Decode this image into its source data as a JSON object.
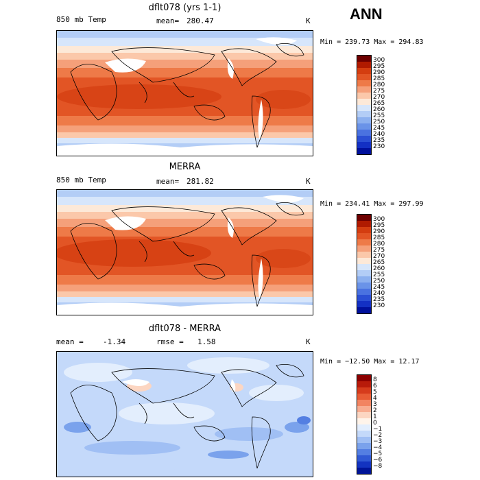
{
  "season": "ANN",
  "units": "K",
  "panels": [
    {
      "title": "dflt078 (yrs 1-1)",
      "field": "850 mb Temp",
      "stat1_label": "mean=",
      "stat1_value": "280.47",
      "minmax": "Min = 239.73 Max = 294.83",
      "palette": "temp",
      "colorbar_ticks": [
        "300",
        "295",
        "290",
        "285",
        "280",
        "275",
        "270",
        "265",
        "260",
        "255",
        "250",
        "245",
        "240",
        "235",
        "230"
      ]
    },
    {
      "title": "MERRA",
      "field": "850 mb Temp",
      "stat1_label": "mean=",
      "stat1_value": "281.82",
      "minmax": "Min = 234.41 Max = 297.99",
      "palette": "temp",
      "colorbar_ticks": [
        "300",
        "295",
        "290",
        "285",
        "280",
        "275",
        "270",
        "265",
        "260",
        "255",
        "250",
        "245",
        "240",
        "235",
        "230"
      ]
    },
    {
      "title": "dflt078 - MERRA",
      "stat1_label": "mean =",
      "stat1_value": "-1.34",
      "stat2_label": "rmse =",
      "stat2_value": "1.58",
      "minmax": "Min = −12.50 Max =  12.17",
      "palette": "diff",
      "colorbar_ticks": [
        "8",
        "6",
        "5",
        "4",
        "3",
        "2",
        "1",
        "0",
        "−1",
        "−2",
        "−3",
        "−4",
        "−5",
        "−6",
        "−8"
      ]
    }
  ],
  "colors": {
    "temp": [
      "#6e0000",
      "#b01a00",
      "#d43d10",
      "#e25525",
      "#ee7a48",
      "#f5a07a",
      "#fbc8aa",
      "#fde9d8",
      "#d7e6fb",
      "#b3cdf6",
      "#8cb0ef",
      "#6a93e8",
      "#4a72e0",
      "#2b4fd4",
      "#1330c4",
      "#00109c"
    ],
    "diff": [
      "#8b0000",
      "#b81a0a",
      "#d63b1c",
      "#e85c35",
      "#f28461",
      "#f8ad91",
      "#fcd6c2",
      "#fff4ea",
      "#e3eefd",
      "#c4d9fa",
      "#a0bff4",
      "#7aa2ec",
      "#547fe2",
      "#3059d4",
      "#1333c0",
      "#001497"
    ]
  }
}
